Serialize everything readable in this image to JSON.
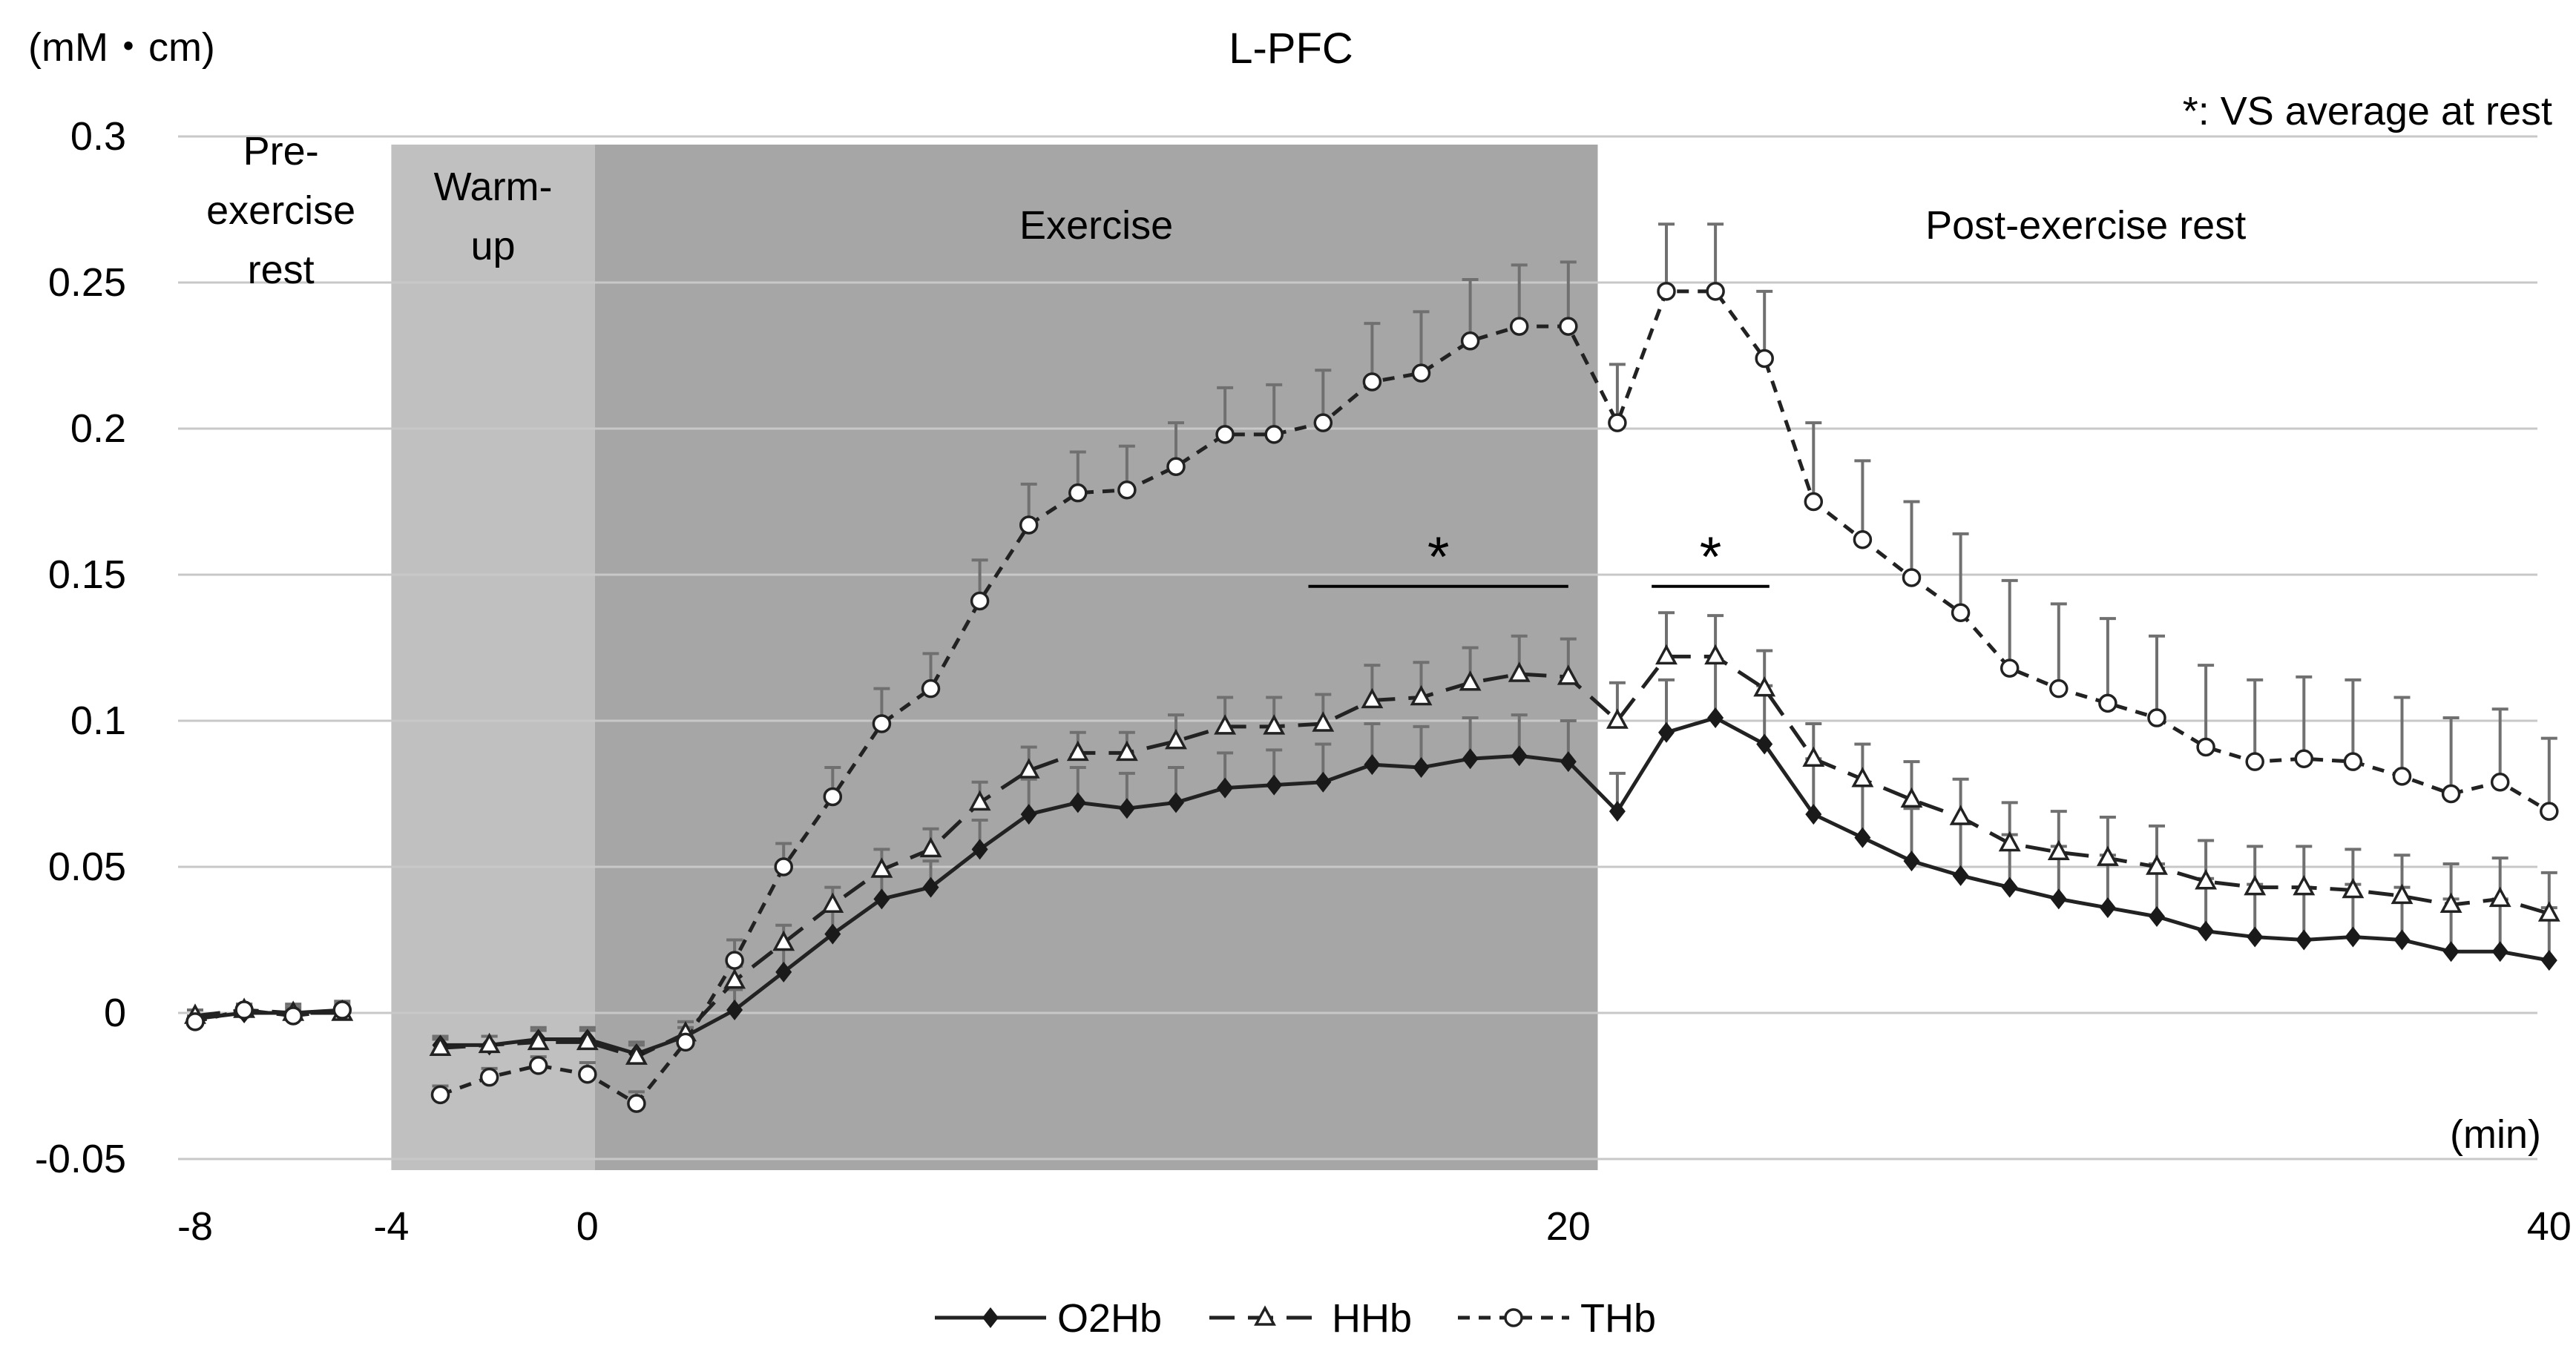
{
  "chart_data": {
    "type": "line",
    "title": "L-PFC",
    "ylabel": "(mM・cm)",
    "xlabel": "(min)",
    "note": "*: VS average at rest",
    "ylim": [
      -0.05,
      0.3
    ],
    "yticks": [
      -0.05,
      0,
      0.05,
      0.1,
      0.15,
      0.2,
      0.25,
      0.3
    ],
    "ytick_labels": [
      "-0.05",
      "0",
      "0.05",
      "0.1",
      "0.15",
      "0.2",
      "0.25",
      "0.3"
    ],
    "xlim": [
      -8,
      40
    ],
    "xtick_labels": [
      {
        "label": "-8",
        "value": -8
      },
      {
        "label": "-4",
        "value": -4
      },
      {
        "label": "0",
        "value": 0
      },
      {
        "label": "20",
        "value": 20
      },
      {
        "label": "40",
        "value": 40
      }
    ],
    "phases": [
      {
        "name": "pre",
        "label_lines": [
          "Pre-",
          "exercise",
          "rest"
        ],
        "start": -8.5,
        "end": -4.0,
        "color": "#ffffff"
      },
      {
        "name": "warmup",
        "label_lines": [
          "Warm-",
          "up"
        ],
        "start": -4.0,
        "end": 0.15,
        "color": "#c0c0c0"
      },
      {
        "name": "exercise",
        "label_lines": [
          "Exercise"
        ],
        "start": 0.15,
        "end": 20.6,
        "color": "#a6a6a6"
      },
      {
        "name": "post",
        "label_lines": [
          "Post-exercise rest"
        ],
        "start": 20.6,
        "end": 40.5,
        "color": "#ffffff"
      }
    ],
    "x": [
      -8,
      -7,
      -6,
      -5,
      -3,
      -2,
      -1,
      0,
      1,
      2,
      3,
      4,
      5,
      6,
      7,
      8,
      9,
      10,
      11,
      12,
      13,
      14,
      15,
      16,
      17,
      18,
      19,
      20,
      21,
      22,
      23,
      24,
      25,
      26,
      27,
      28,
      29,
      30,
      31,
      32,
      33,
      34,
      35,
      36,
      37,
      38,
      39,
      40
    ],
    "series": [
      {
        "name": "O2Hb",
        "marker": "diamond",
        "dash": "solid",
        "values": [
          -0.002,
          0.0,
          0.0,
          0.001,
          -0.011,
          -0.011,
          -0.009,
          -0.009,
          -0.014,
          -0.008,
          0.001,
          0.014,
          0.027,
          0.039,
          0.043,
          0.056,
          0.068,
          0.072,
          0.07,
          0.072,
          0.077,
          0.078,
          0.079,
          0.085,
          0.084,
          0.087,
          0.088,
          0.086,
          0.069,
          0.096,
          0.101,
          0.092,
          0.068,
          0.06,
          0.052,
          0.047,
          0.043,
          0.039,
          0.036,
          0.033,
          0.028,
          0.026,
          0.025,
          0.026,
          0.025,
          0.021,
          0.021,
          0.018
        ],
        "errors": [
          0.003,
          0.003,
          0.003,
          0.003,
          0.003,
          0.003,
          0.004,
          0.004,
          0.004,
          0.005,
          0.007,
          0.008,
          0.008,
          0.009,
          0.009,
          0.01,
          0.012,
          0.012,
          0.012,
          0.012,
          0.012,
          0.012,
          0.013,
          0.014,
          0.014,
          0.014,
          0.014,
          0.014,
          0.013,
          0.018,
          0.02,
          0.02,
          0.019,
          0.018,
          0.018,
          0.018,
          0.018,
          0.018,
          0.018,
          0.018,
          0.018,
          0.018,
          0.018,
          0.018,
          0.018,
          0.018,
          0.018,
          0.018
        ]
      },
      {
        "name": "HHb",
        "marker": "triangle",
        "dash": "long",
        "values": [
          -0.001,
          0.001,
          0.0,
          0.0,
          -0.012,
          -0.011,
          -0.01,
          -0.01,
          -0.015,
          -0.007,
          0.011,
          0.024,
          0.037,
          0.049,
          0.056,
          0.072,
          0.083,
          0.089,
          0.089,
          0.093,
          0.098,
          0.098,
          0.099,
          0.107,
          0.108,
          0.113,
          0.116,
          0.115,
          0.1,
          0.122,
          0.122,
          0.111,
          0.087,
          0.08,
          0.073,
          0.067,
          0.058,
          0.055,
          0.053,
          0.05,
          0.045,
          0.043,
          0.043,
          0.042,
          0.04,
          0.037,
          0.039,
          0.034
        ],
        "errors": [
          0.002,
          0.002,
          0.002,
          0.002,
          0.003,
          0.003,
          0.004,
          0.004,
          0.004,
          0.004,
          0.005,
          0.006,
          0.006,
          0.007,
          0.007,
          0.007,
          0.008,
          0.007,
          0.007,
          0.009,
          0.01,
          0.01,
          0.01,
          0.012,
          0.012,
          0.012,
          0.013,
          0.013,
          0.013,
          0.015,
          0.014,
          0.013,
          0.012,
          0.012,
          0.013,
          0.013,
          0.014,
          0.014,
          0.014,
          0.014,
          0.014,
          0.014,
          0.014,
          0.014,
          0.014,
          0.014,
          0.014,
          0.014
        ]
      },
      {
        "name": "THb",
        "marker": "circle",
        "dash": "short",
        "values": [
          -0.003,
          0.001,
          -0.001,
          0.001,
          -0.028,
          -0.022,
          -0.018,
          -0.021,
          -0.031,
          -0.01,
          0.018,
          0.05,
          0.074,
          0.099,
          0.111,
          0.141,
          0.167,
          0.178,
          0.179,
          0.187,
          0.198,
          0.198,
          0.202,
          0.216,
          0.219,
          0.23,
          0.235,
          0.235,
          0.202,
          0.247,
          0.247,
          0.224,
          0.175,
          0.162,
          0.149,
          0.137,
          0.118,
          0.111,
          0.106,
          0.101,
          0.091,
          0.086,
          0.087,
          0.086,
          0.081,
          0.075,
          0.079,
          0.069
        ],
        "errors": [
          0.002,
          0.002,
          0.002,
          0.002,
          0.003,
          0.003,
          0.003,
          0.004,
          0.004,
          0.005,
          0.007,
          0.008,
          0.01,
          0.012,
          0.012,
          0.014,
          0.014,
          0.014,
          0.015,
          0.015,
          0.016,
          0.017,
          0.018,
          0.02,
          0.021,
          0.021,
          0.021,
          0.022,
          0.02,
          0.023,
          0.023,
          0.023,
          0.027,
          0.027,
          0.026,
          0.027,
          0.03,
          0.029,
          0.029,
          0.028,
          0.028,
          0.028,
          0.028,
          0.028,
          0.027,
          0.026,
          0.025,
          0.025
        ]
      }
    ],
    "significance": [
      {
        "label": "*",
        "x_start": 14.7,
        "x_end": 20.0,
        "y": 0.146
      },
      {
        "label": "*",
        "x_start": 21.7,
        "x_end": 24.1,
        "y": 0.146
      }
    ]
  }
}
